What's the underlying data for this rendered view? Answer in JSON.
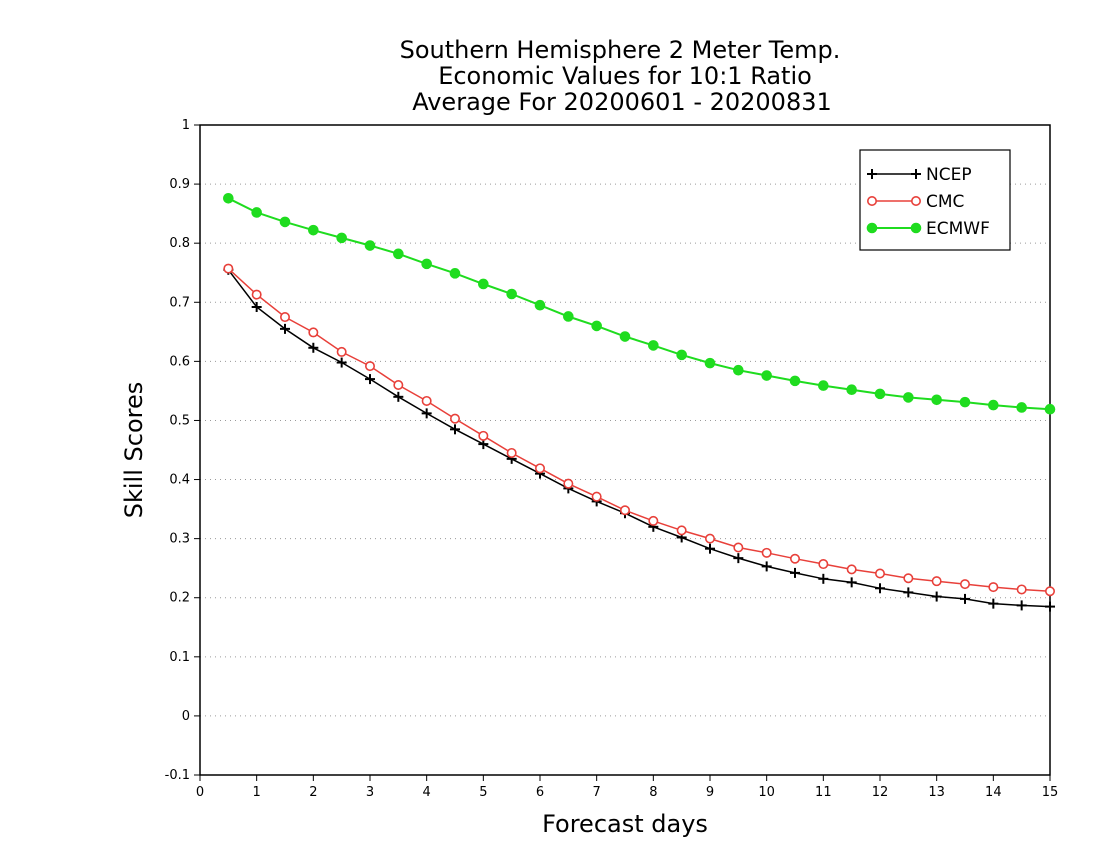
{
  "chart_data": {
    "type": "line",
    "title": [
      "Southern Hemisphere 2 Meter Temp.",
      "Economic Values for 10:1 Ratio",
      "Average For 20200601 - 20200831"
    ],
    "xlabel": "Forecast days",
    "ylabel": "Skill Scores",
    "xlim": [
      0,
      15
    ],
    "ylim": [
      -0.1,
      1
    ],
    "xticks": [
      "0",
      "1",
      "2",
      "3",
      "4",
      "5",
      "6",
      "7",
      "8",
      "9",
      "10",
      "11",
      "12",
      "13",
      "14",
      "15"
    ],
    "yticks": [
      "-0.1",
      "0",
      "0.1",
      "0.2",
      "0.3",
      "0.4",
      "0.5",
      "0.6",
      "0.7",
      "0.8",
      "0.9",
      "1"
    ],
    "grid": "horizontal dotted",
    "legend_position": "top-right",
    "x": [
      0.5,
      1,
      1.5,
      2,
      2.5,
      3,
      3.5,
      4,
      4.5,
      5,
      5.5,
      6,
      6.5,
      7,
      7.5,
      8,
      8.5,
      9,
      9.5,
      10,
      10.5,
      11,
      11.5,
      12,
      12.5,
      13,
      13.5,
      14,
      14.5,
      15
    ],
    "series": [
      {
        "name": "NCEP",
        "color": "#000000",
        "marker": "plus",
        "values": [
          0.755,
          0.692,
          0.655,
          0.623,
          0.598,
          0.57,
          0.54,
          0.512,
          0.485,
          0.46,
          0.435,
          0.41,
          0.385,
          0.363,
          0.343,
          0.32,
          0.302,
          0.283,
          0.267,
          0.253,
          0.242,
          0.232,
          0.226,
          0.216,
          0.209,
          0.202,
          0.198,
          0.19,
          0.187,
          0.185
        ]
      },
      {
        "name": "CMC",
        "color": "#e8403a",
        "marker": "open-circle",
        "values": [
          0.757,
          0.713,
          0.675,
          0.649,
          0.616,
          0.592,
          0.56,
          0.533,
          0.503,
          0.474,
          0.445,
          0.419,
          0.393,
          0.371,
          0.348,
          0.33,
          0.314,
          0.3,
          0.285,
          0.276,
          0.266,
          0.257,
          0.248,
          0.241,
          0.233,
          0.228,
          0.223,
          0.218,
          0.214,
          0.211
        ]
      },
      {
        "name": "ECMWF",
        "color": "#1fdc1f",
        "marker": "filled-circle",
        "values": [
          0.876,
          0.852,
          0.836,
          0.822,
          0.809,
          0.796,
          0.782,
          0.765,
          0.749,
          0.731,
          0.714,
          0.695,
          0.676,
          0.66,
          0.642,
          0.627,
          0.611,
          0.597,
          0.585,
          0.576,
          0.567,
          0.559,
          0.552,
          0.545,
          0.539,
          0.535,
          0.531,
          0.526,
          0.522,
          0.519
        ]
      }
    ]
  }
}
